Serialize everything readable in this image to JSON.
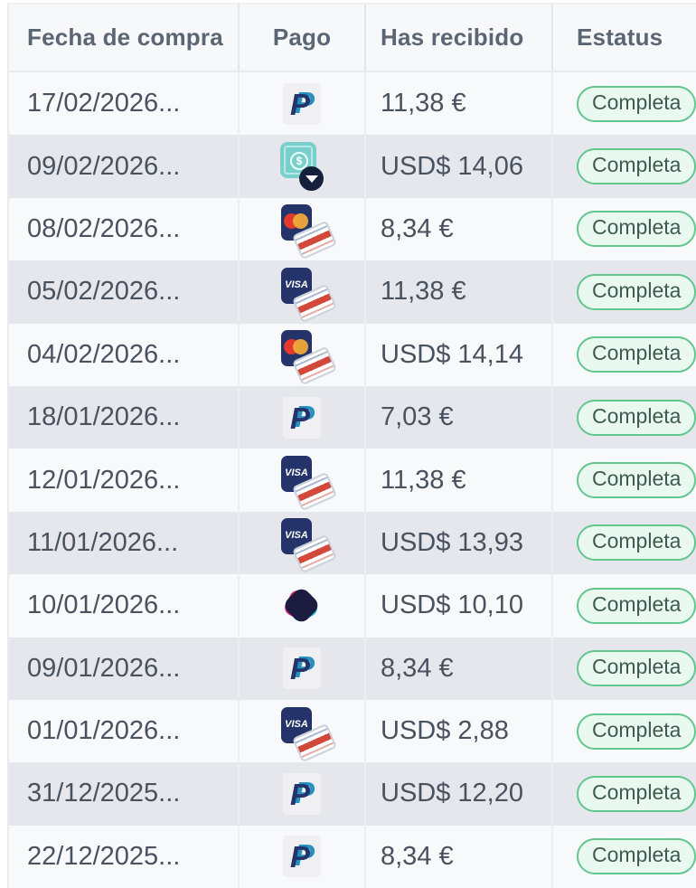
{
  "colors": {
    "header_bg": "#f7f8fa",
    "header_text": "#5b6573",
    "row_bg": "#f8f9fb",
    "row_alt_bg": "#e5e7ec",
    "cell_text": "#49525f",
    "badge_border": "#62c78e",
    "badge_bg": "#e9f9f0",
    "badge_text": "#3f5a52",
    "paypal_navy": "#24346a",
    "paypal_blue": "#2790c3",
    "cash_teal": "#79cfcb",
    "dark_navy": "#15203c",
    "card_navy": "#24346a",
    "crypto_navy": "#1c1c40",
    "crypto_magenta": "#d5256f",
    "crypto_cyan": "#25c4e8"
  },
  "table": {
    "headers": [
      "Fecha de compra",
      "Pago",
      "Has recibido",
      "Estatus"
    ],
    "rows": [
      {
        "date": "17/02/2026...",
        "method": "paypal",
        "icon": "paypal-icon",
        "amount": "11,38 €",
        "status": "Completa"
      },
      {
        "date": "09/02/2026...",
        "method": "cash",
        "icon": "cash-payment-icon",
        "amount": "USD$ 14,06",
        "status": "Completa"
      },
      {
        "date": "08/02/2026...",
        "method": "mastercard",
        "icon": "mastercard-icon",
        "amount": "8,34 €",
        "status": "Completa"
      },
      {
        "date": "05/02/2026...",
        "method": "visa",
        "icon": "visa-icon",
        "amount": "11,38 €",
        "status": "Completa"
      },
      {
        "date": "04/02/2026...",
        "method": "mastercard",
        "icon": "mastercard-icon",
        "amount": "USD$ 14,14",
        "status": "Completa"
      },
      {
        "date": "18/01/2026...",
        "method": "paypal",
        "icon": "paypal-icon",
        "amount": "7,03 €",
        "status": "Completa"
      },
      {
        "date": "12/01/2026...",
        "method": "visa",
        "icon": "visa-icon",
        "amount": "11,38 €",
        "status": "Completa"
      },
      {
        "date": "11/01/2026...",
        "method": "visa",
        "icon": "visa-icon",
        "amount": "USD$ 13,93",
        "status": "Completa"
      },
      {
        "date": "10/01/2026...",
        "method": "crypto",
        "icon": "crypto-icon",
        "amount": "USD$ 10,10",
        "status": "Completa"
      },
      {
        "date": "09/01/2026...",
        "method": "paypal",
        "icon": "paypal-icon",
        "amount": "8,34 €",
        "status": "Completa"
      },
      {
        "date": "01/01/2026...",
        "method": "visa",
        "icon": "visa-icon",
        "amount": "USD$ 2,88",
        "status": "Completa"
      },
      {
        "date": "31/12/2025...",
        "method": "paypal",
        "icon": "paypal-icon",
        "amount": "USD$ 12,20",
        "status": "Completa"
      },
      {
        "date": "22/12/2025...",
        "method": "paypal",
        "icon": "paypal-icon",
        "amount": "8,34 €",
        "status": "Completa"
      }
    ]
  }
}
